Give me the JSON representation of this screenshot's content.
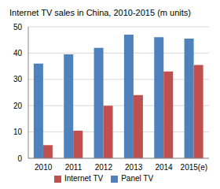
{
  "chart_data": {
    "type": "bar",
    "title": "Internet TV sales in China, 2010-2015 (m units)",
    "categories": [
      "2010",
      "2011",
      "2012",
      "2013",
      "2014",
      "2015(e)"
    ],
    "series": [
      {
        "name": "Panel TV",
        "color": "#4f81bd",
        "values": [
          36,
          39.5,
          42,
          47,
          46,
          45.5
        ]
      },
      {
        "name": "Internet TV",
        "color": "#c0504d",
        "values": [
          5,
          10.5,
          20,
          24,
          33,
          35.5
        ]
      }
    ],
    "ylim": [
      0,
      50
    ],
    "yticks": [
      0,
      10,
      20,
      30,
      40,
      50
    ],
    "grid": true,
    "legend": "bottom"
  }
}
